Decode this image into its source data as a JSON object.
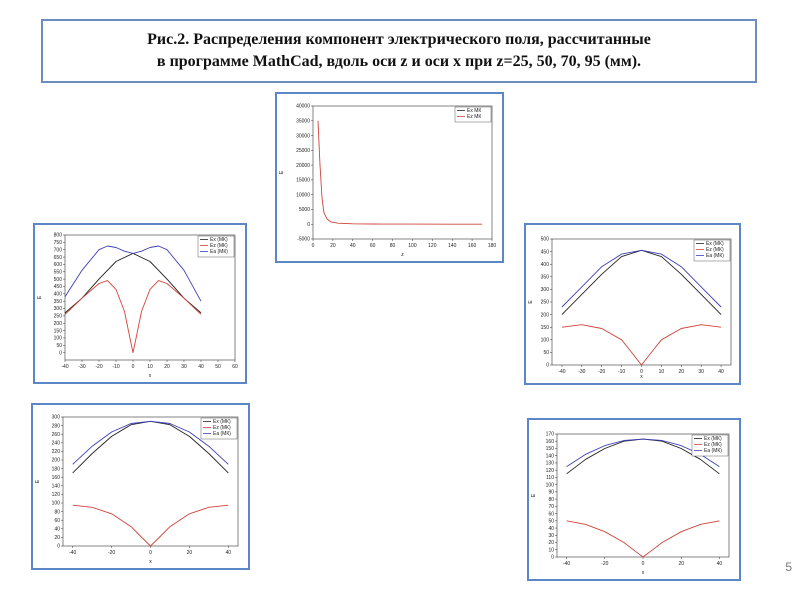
{
  "title": {
    "line1": "Рис.2. Распределения компонент электрического поля, рассчитанные",
    "line2": "в программе MathCad, вдоль оси z и оси x при z=25, 50, 70, 95 (мм)."
  },
  "page_number": "5",
  "colors": {
    "black": "#222222",
    "red": "#d0443a",
    "blue": "#3f3fb8",
    "frame": "#5b87c6"
  },
  "chart_data": [
    {
      "id": "z-axis",
      "type": "line",
      "xlabel": "z",
      "ylabel": "E",
      "xlim": [
        0,
        180
      ],
      "ylim": [
        -5000,
        40000
      ],
      "xticks": [
        0,
        20,
        40,
        60,
        80,
        100,
        120,
        140,
        160,
        180
      ],
      "yticks": [
        -5000,
        0,
        5000,
        10000,
        15000,
        20000,
        25000,
        30000,
        35000,
        40000
      ],
      "legend": [
        "Ex МК",
        "Ez МК"
      ],
      "legend_position": "top-right",
      "series": [
        {
          "name": "Ez МК",
          "color": "red",
          "x": [
            5,
            7,
            9,
            11,
            14,
            18,
            25,
            40,
            60,
            100,
            140,
            170
          ],
          "y": [
            35000,
            20000,
            9000,
            4000,
            1800,
            800,
            350,
            150,
            80,
            40,
            20,
            10
          ]
        }
      ]
    },
    {
      "id": "x-z25",
      "type": "line",
      "xlabel": "x",
      "ylabel": "E",
      "xlim": [
        -40,
        60
      ],
      "ylim": [
        -50,
        800
      ],
      "xticks": [
        -40,
        -30,
        -20,
        -10,
        0,
        10,
        20,
        30,
        40,
        50,
        60
      ],
      "yticks": [
        0,
        50,
        100,
        150,
        200,
        250,
        300,
        350,
        400,
        450,
        500,
        550,
        600,
        650,
        700,
        750,
        800
      ],
      "legend": [
        "Ex (МК)",
        "Ez (МК)",
        "Ea (МК)"
      ],
      "legend_position": "top-right",
      "series": [
        {
          "name": "Ex (МК)",
          "color": "black",
          "x": [
            -40,
            -30,
            -20,
            -10,
            0,
            10,
            20,
            30,
            40
          ],
          "y": [
            270,
            370,
            500,
            620,
            675,
            620,
            500,
            370,
            270
          ]
        },
        {
          "name": "Ez (МК)",
          "color": "red",
          "x": [
            -40,
            -30,
            -20,
            -15,
            -10,
            -5,
            -2,
            0,
            2,
            5,
            10,
            15,
            20,
            30,
            40
          ],
          "y": [
            260,
            370,
            470,
            490,
            430,
            280,
            110,
            0,
            110,
            280,
            430,
            490,
            470,
            370,
            260
          ]
        },
        {
          "name": "Ea (МК)",
          "color": "blue",
          "x": [
            -40,
            -30,
            -20,
            -15,
            -10,
            -5,
            0,
            5,
            10,
            15,
            20,
            30,
            40
          ],
          "y": [
            380,
            560,
            700,
            725,
            715,
            690,
            675,
            690,
            715,
            725,
            700,
            560,
            350
          ]
        }
      ]
    },
    {
      "id": "x-z50",
      "type": "line",
      "xlabel": "x",
      "ylabel": "E",
      "xlim": [
        -45,
        45
      ],
      "ylim": [
        0,
        500
      ],
      "xticks": [
        -40,
        -30,
        -20,
        -10,
        0,
        10,
        20,
        30,
        40
      ],
      "yticks": [
        0,
        50,
        100,
        150,
        200,
        250,
        300,
        350,
        400,
        450,
        500
      ],
      "legend": [
        "Ex (МК)",
        "Ez (МК)",
        "Ea (МК)"
      ],
      "legend_position": "top-right",
      "series": [
        {
          "name": "Ex (МК)",
          "color": "black",
          "x": [
            -40,
            -30,
            -20,
            -10,
            0,
            10,
            20,
            30,
            40
          ],
          "y": [
            200,
            280,
            360,
            430,
            455,
            430,
            360,
            280,
            200
          ]
        },
        {
          "name": "Ez (МК)",
          "color": "red",
          "x": [
            -40,
            -30,
            -20,
            -10,
            -5,
            0,
            5,
            10,
            20,
            30,
            40
          ],
          "y": [
            150,
            160,
            145,
            100,
            50,
            0,
            50,
            100,
            145,
            160,
            150
          ]
        },
        {
          "name": "Ea (МК)",
          "color": "blue",
          "x": [
            -40,
            -30,
            -20,
            -10,
            0,
            10,
            20,
            30,
            40
          ],
          "y": [
            230,
            310,
            390,
            440,
            455,
            440,
            390,
            310,
            230
          ]
        }
      ]
    },
    {
      "id": "x-z70",
      "type": "line",
      "xlabel": "x",
      "ylabel": "E",
      "xlim": [
        -45,
        45
      ],
      "ylim": [
        0,
        300
      ],
      "xticks": [
        -40,
        -20,
        0,
        20,
        40
      ],
      "yticks": [
        0,
        20,
        40,
        60,
        80,
        100,
        120,
        140,
        160,
        180,
        200,
        220,
        240,
        260,
        280,
        300
      ],
      "legend": [
        "Ex (МК)",
        "Ez (МК)",
        "Ea (МК)"
      ],
      "legend_position": "top-right",
      "series": [
        {
          "name": "Ex (МК)",
          "color": "black",
          "x": [
            -40,
            -30,
            -20,
            -10,
            0,
            10,
            20,
            30,
            40
          ],
          "y": [
            170,
            215,
            255,
            282,
            290,
            282,
            255,
            215,
            170
          ]
        },
        {
          "name": "Ez (МК)",
          "color": "red",
          "x": [
            -40,
            -30,
            -20,
            -10,
            -5,
            0,
            5,
            10,
            20,
            30,
            40
          ],
          "y": [
            95,
            90,
            75,
            45,
            22,
            0,
            22,
            45,
            75,
            90,
            95
          ]
        },
        {
          "name": "Ea (МК)",
          "color": "blue",
          "x": [
            -40,
            -30,
            -20,
            -10,
            0,
            10,
            20,
            30,
            40
          ],
          "y": [
            190,
            232,
            265,
            285,
            290,
            285,
            265,
            232,
            190
          ]
        }
      ]
    },
    {
      "id": "x-z95",
      "type": "line",
      "xlabel": "x",
      "ylabel": "E",
      "xlim": [
        -45,
        45
      ],
      "ylim": [
        0,
        170
      ],
      "xticks": [
        -40,
        -20,
        0,
        20,
        40
      ],
      "yticks": [
        0,
        10,
        20,
        30,
        40,
        50,
        60,
        70,
        80,
        90,
        100,
        110,
        120,
        130,
        140,
        150,
        160,
        170
      ],
      "legend": [
        "Ex (МК)",
        "Ez (МК)",
        "Ea (МК)"
      ],
      "legend_position": "top-right",
      "series": [
        {
          "name": "Ex (МК)",
          "color": "black",
          "x": [
            -40,
            -30,
            -20,
            -10,
            0,
            10,
            20,
            30,
            40
          ],
          "y": [
            115,
            135,
            150,
            160,
            163,
            160,
            150,
            135,
            115
          ]
        },
        {
          "name": "Ez (МК)",
          "color": "red",
          "x": [
            -40,
            -30,
            -20,
            -10,
            -5,
            0,
            5,
            10,
            20,
            30,
            40
          ],
          "y": [
            50,
            45,
            35,
            20,
            10,
            0,
            10,
            20,
            35,
            45,
            50
          ]
        },
        {
          "name": "Ea (МК)",
          "color": "blue",
          "x": [
            -40,
            -30,
            -20,
            -10,
            0,
            10,
            20,
            30,
            40
          ],
          "y": [
            125,
            142,
            154,
            161,
            163,
            161,
            154,
            142,
            125
          ]
        }
      ]
    }
  ]
}
